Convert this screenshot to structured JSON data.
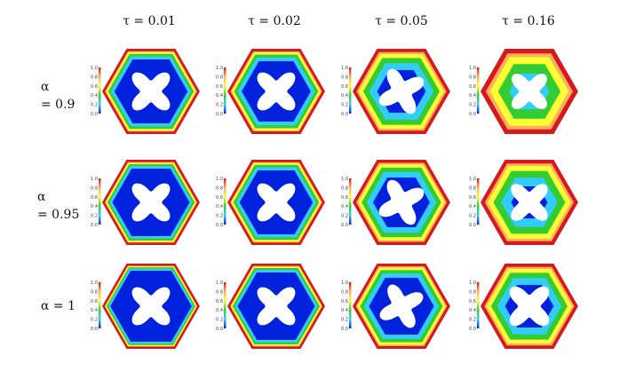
{
  "columns": [
    {
      "label": "τ = 0.01"
    },
    {
      "label": "τ = 0.02"
    },
    {
      "label": "τ = 0.05"
    },
    {
      "label": "τ = 0.16"
    }
  ],
  "rows": [
    {
      "label_line1": "α",
      "label_line2": "= 0.9"
    },
    {
      "label_line1": "α",
      "label_line2": "= 0.95"
    },
    {
      "label_line1": "α = 1",
      "label_line2": ""
    }
  ],
  "colorbar": {
    "ticks": [
      "1.0",
      "0.8",
      "0.6",
      "0.4",
      "0.2",
      "0.0"
    ],
    "colormap": [
      "#d7191c",
      "#fdae61",
      "#ffff33",
      "#33cc33",
      "#33ccff",
      "#0022dd"
    ]
  }
}
